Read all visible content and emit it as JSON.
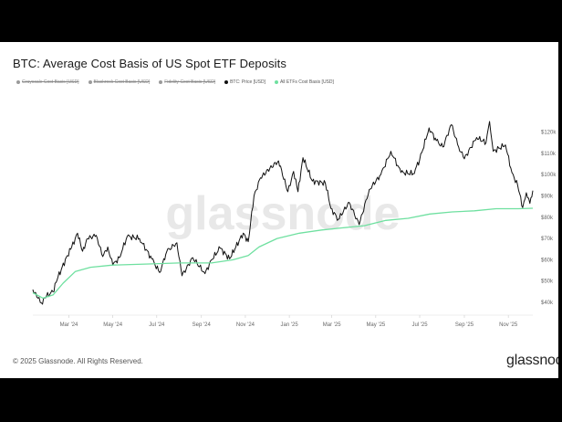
{
  "title": "BTC: Average Cost Basis of US Spot ETF Deposits",
  "legend": [
    {
      "label": "Grayscale Cost Basis [USD]",
      "color": "#9a9a9a",
      "hidden": true
    },
    {
      "label": "Blackrock Cost Basis [USD]",
      "color": "#9a9a9a",
      "hidden": true
    },
    {
      "label": "Fidelity Cost Basis [USD]",
      "color": "#9a9a9a",
      "hidden": true
    },
    {
      "label": "BTC: Price [USD]",
      "color": "#111111",
      "hidden": false
    },
    {
      "label": "All ETFs Cost Basis [USD]",
      "color": "#6fe0a0",
      "hidden": false
    }
  ],
  "watermark": "glassnode",
  "footer": "© 2025 Glassnode. All Rights Reserved.",
  "brand": "glassnode",
  "colors": {
    "price": "#111111",
    "cost_basis": "#6fe0a0",
    "grid": "#eeeeee",
    "axis_text": "#666666"
  },
  "chart_data": {
    "type": "line",
    "title": "BTC: Average Cost Basis of US Spot ETF Deposits",
    "x_ticks": [
      "Mar '24",
      "May '24",
      "Jul '24",
      "Sep '24",
      "Nov '24",
      "Jan '25",
      "Mar '25",
      "May '25",
      "Jul '25",
      "Sep '25",
      "Nov '25"
    ],
    "y_ticks": [
      "$40k",
      "$50k",
      "$60k",
      "$70k",
      "$80k",
      "$90k",
      "$100k",
      "$110k",
      "$120k"
    ],
    "ylim": [
      37000,
      128000
    ],
    "xlim": [
      "2024-01-11",
      "2025-12-05"
    ],
    "y_axis_side": "right",
    "grid": false,
    "series": [
      {
        "name": "BTC: Price [USD]",
        "color": "#111111",
        "points": [
          [
            "2024-01-11",
            46000
          ],
          [
            "2024-01-18",
            42000
          ],
          [
            "2024-01-23",
            39700
          ],
          [
            "2024-01-30",
            43000
          ],
          [
            "2024-02-08",
            45000
          ],
          [
            "2024-02-15",
            52000
          ],
          [
            "2024-02-28",
            62000
          ],
          [
            "2024-03-05",
            66000
          ],
          [
            "2024-03-13",
            72500
          ],
          [
            "2024-03-20",
            64000
          ],
          [
            "2024-03-27",
            70000
          ],
          [
            "2024-04-08",
            71500
          ],
          [
            "2024-04-17",
            61500
          ],
          [
            "2024-04-24",
            66000
          ],
          [
            "2024-05-01",
            57500
          ],
          [
            "2024-05-10",
            61000
          ],
          [
            "2024-05-21",
            71000
          ],
          [
            "2024-06-07",
            70000
          ],
          [
            "2024-06-24",
            60500
          ],
          [
            "2024-07-05",
            54000
          ],
          [
            "2024-07-15",
            64000
          ],
          [
            "2024-07-29",
            68000
          ],
          [
            "2024-08-05",
            52500
          ],
          [
            "2024-08-20",
            61000
          ],
          [
            "2024-09-06",
            53500
          ],
          [
            "2024-09-15",
            60000
          ],
          [
            "2024-09-27",
            65500
          ],
          [
            "2024-10-10",
            60500
          ],
          [
            "2024-10-29",
            72500
          ],
          [
            "2024-11-05",
            68500
          ],
          [
            "2024-11-13",
            90000
          ],
          [
            "2024-11-22",
            98500
          ],
          [
            "2024-12-05",
            103000
          ],
          [
            "2024-12-17",
            106500
          ],
          [
            "2024-12-30",
            92000
          ],
          [
            "2025-01-07",
            101500
          ],
          [
            "2025-01-13",
            92000
          ],
          [
            "2025-01-20",
            108000
          ],
          [
            "2025-02-02",
            97000
          ],
          [
            "2025-02-20",
            96000
          ],
          [
            "2025-02-28",
            84000
          ],
          [
            "2025-03-10",
            79000
          ],
          [
            "2025-03-25",
            87000
          ],
          [
            "2025-04-08",
            76500
          ],
          [
            "2025-04-22",
            93000
          ],
          [
            "2025-05-08",
            100000
          ],
          [
            "2025-05-22",
            111000
          ],
          [
            "2025-06-05",
            101000
          ],
          [
            "2025-06-22",
            100500
          ],
          [
            "2025-07-01",
            107000
          ],
          [
            "2025-07-14",
            122000
          ],
          [
            "2025-07-24",
            116000
          ],
          [
            "2025-08-02",
            113000
          ],
          [
            "2025-08-14",
            123500
          ],
          [
            "2025-08-24",
            113000
          ],
          [
            "2025-09-01",
            107500
          ],
          [
            "2025-09-18",
            117500
          ],
          [
            "2025-10-01",
            115000
          ],
          [
            "2025-10-06",
            125000
          ],
          [
            "2025-10-11",
            111000
          ],
          [
            "2025-10-28",
            114000
          ],
          [
            "2025-11-06",
            101000
          ],
          [
            "2025-11-14",
            95000
          ],
          [
            "2025-11-21",
            84500
          ],
          [
            "2025-11-26",
            91500
          ],
          [
            "2025-12-01",
            86500
          ],
          [
            "2025-12-05",
            92500
          ]
        ]
      },
      {
        "name": "All ETFs Cost Basis [USD]",
        "color": "#6fe0a0",
        "points": [
          [
            "2024-01-11",
            44500
          ],
          [
            "2024-01-25",
            42000
          ],
          [
            "2024-02-08",
            43500
          ],
          [
            "2024-02-22",
            49000
          ],
          [
            "2024-03-10",
            54500
          ],
          [
            "2024-03-31",
            56500
          ],
          [
            "2024-05-01",
            57500
          ],
          [
            "2024-06-15",
            58000
          ],
          [
            "2024-08-01",
            58500
          ],
          [
            "2024-09-15",
            58500
          ],
          [
            "2024-10-15",
            60000
          ],
          [
            "2024-11-05",
            62000
          ],
          [
            "2024-11-20",
            66000
          ],
          [
            "2024-12-15",
            70000
          ],
          [
            "2025-01-15",
            72500
          ],
          [
            "2025-02-15",
            74000
          ],
          [
            "2025-03-15",
            75000
          ],
          [
            "2025-04-15",
            76000
          ],
          [
            "2025-05-15",
            78500
          ],
          [
            "2025-06-15",
            79500
          ],
          [
            "2025-07-15",
            81500
          ],
          [
            "2025-08-15",
            82500
          ],
          [
            "2025-09-15",
            83000
          ],
          [
            "2025-10-15",
            84000
          ],
          [
            "2025-11-15",
            84000
          ],
          [
            "2025-12-05",
            84200
          ]
        ]
      }
    ]
  }
}
